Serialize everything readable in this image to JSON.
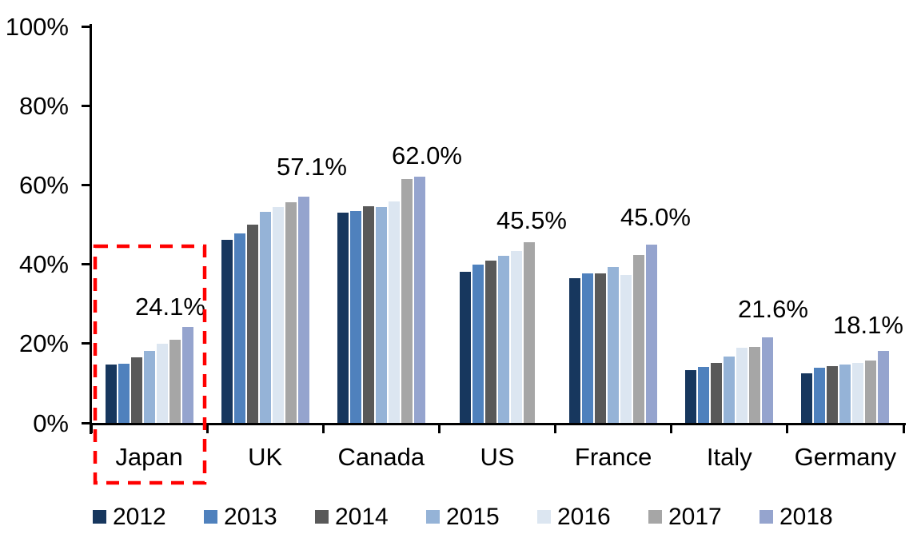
{
  "chart_data": {
    "type": "bar",
    "title": "",
    "xlabel": "",
    "ylabel": "",
    "categories": [
      "Japan",
      "UK",
      "Canada",
      "US",
      "France",
      "Italy",
      "Germany"
    ],
    "series": [
      {
        "name": "2012",
        "color": "#17375E",
        "values": [
          14.8,
          46.2,
          53.0,
          38.2,
          36.5,
          13.3,
          12.5
        ]
      },
      {
        "name": "2013",
        "color": "#4F81BD",
        "values": [
          15.0,
          47.7,
          53.4,
          40.0,
          37.7,
          14.1,
          13.9
        ]
      },
      {
        "name": "2014",
        "color": "#595959",
        "values": [
          16.6,
          49.9,
          54.6,
          40.9,
          37.7,
          15.2,
          14.3
        ]
      },
      {
        "name": "2015",
        "color": "#95B3D7",
        "values": [
          18.1,
          53.3,
          54.4,
          42.1,
          39.3,
          16.7,
          14.7
        ]
      },
      {
        "name": "2016",
        "color": "#DCE6F1",
        "values": [
          20.0,
          54.4,
          55.8,
          43.4,
          37.2,
          18.9,
          15.2
        ]
      },
      {
        "name": "2017",
        "color": "#A6A6A6",
        "values": [
          21.0,
          55.6,
          61.5,
          45.5,
          42.3,
          19.1,
          15.8
        ]
      },
      {
        "name": "2018",
        "color": "#95A4CE",
        "values": [
          24.1,
          57.1,
          62.0,
          null,
          45.0,
          21.6,
          18.1
        ]
      }
    ],
    "group_value_labels": [
      "24.1%",
      "57.1%",
      "62.0%",
      "45.5%",
      "45.0%",
      "21.6%",
      "18.1%"
    ],
    "y_axis": {
      "min": 0,
      "max": 100,
      "ticks": [
        {
          "value": 100,
          "label": "100%"
        },
        {
          "value": 80,
          "label": "80%"
        },
        {
          "value": 60,
          "label": "60%"
        },
        {
          "value": 40,
          "label": "40%"
        },
        {
          "value": 20,
          "label": "20%"
        },
        {
          "value": 0,
          "label": "0%"
        }
      ]
    },
    "grid": false,
    "legend": {
      "position": "bottom",
      "entries": [
        "2012",
        "2013",
        "2014",
        "2015",
        "2016",
        "2017",
        "2018"
      ]
    },
    "annotations": {
      "highlight_box": {
        "category": "Japan",
        "color": "#FF0000",
        "style": "dashed"
      }
    }
  }
}
